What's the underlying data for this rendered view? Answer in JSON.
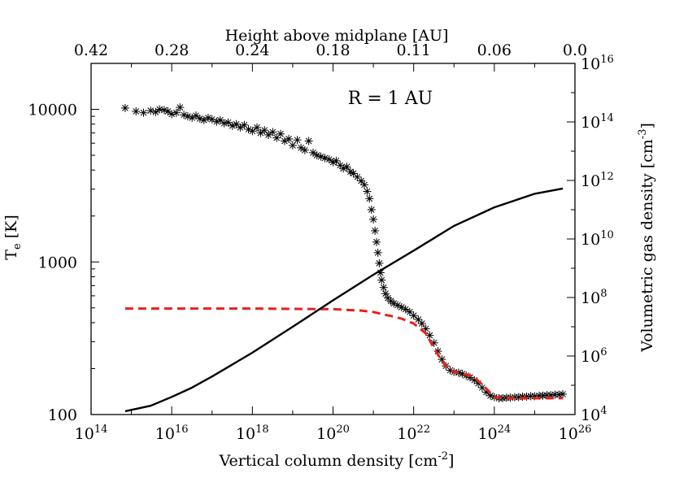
{
  "chart_data": {
    "type": "scatter",
    "annotation": "R = 1 AU",
    "xlabel": "Vertical column density [cm",
    "xlabel_sup": "-2",
    "xlabel_end": "]",
    "ylabel": "T",
    "ylabel_sub": "e",
    "ylabel_end": " [K]",
    "y2label": "Volumetric gas density [cm",
    "y2label_sup": "-3",
    "y2label_end": "]",
    "toplabel": "Height above midplane [AU]",
    "x_scale": "log",
    "y_scale": "log",
    "y2_scale": "log",
    "xlim": [
      100000000000000.0,
      1e+26
    ],
    "ylim": [
      100,
      20000
    ],
    "y2lim": [
      10000.0,
      1e+16
    ],
    "x_ticks": [
      {
        "base": "10",
        "exp": "14",
        "value": 100000000000000.0
      },
      {
        "base": "10",
        "exp": "16",
        "value": 1e+16
      },
      {
        "base": "10",
        "exp": "18",
        "value": 1e+18
      },
      {
        "base": "10",
        "exp": "20",
        "value": 1e+20
      },
      {
        "base": "10",
        "exp": "22",
        "value": 1e+22
      },
      {
        "base": "10",
        "exp": "24",
        "value": 1e+24
      },
      {
        "base": "10",
        "exp": "26",
        "value": 1e+26
      }
    ],
    "y_ticks": [
      {
        "label": "100",
        "value": 100
      },
      {
        "label": "1000",
        "value": 1000
      },
      {
        "label": "10000",
        "value": 10000
      }
    ],
    "y2_ticks": [
      {
        "base": "10",
        "exp": "4",
        "value": 10000.0
      },
      {
        "base": "10",
        "exp": "6",
        "value": 1000000.0
      },
      {
        "base": "10",
        "exp": "8",
        "value": 100000000.0
      },
      {
        "base": "10",
        "exp": "10",
        "value": 10000000000.0
      },
      {
        "base": "10",
        "exp": "12",
        "value": 1000000000000.0
      },
      {
        "base": "10",
        "exp": "14",
        "value": 100000000000000.0
      },
      {
        "base": "10",
        "exp": "16",
        "value": 1e+16
      }
    ],
    "top_ticks": [
      {
        "label": "0.42",
        "x": 100000000000000.0
      },
      {
        "label": "0.28",
        "x": 1e+16
      },
      {
        "label": "0.24",
        "x": 1e+18
      },
      {
        "label": "0.18",
        "x": 1e+20
      },
      {
        "label": "0.11",
        "x": 1e+22
      },
      {
        "label": "0.06",
        "x": 1e+24
      },
      {
        "label": "0.0",
        "x": 1e+26
      }
    ],
    "series": [
      {
        "style": "asterisk",
        "color": "#000000",
        "points": [
          [
            700000000000000.0,
            10200
          ],
          [
            1300000000000000.0,
            9700
          ],
          [
            2000000000000000.0,
            9500
          ],
          [
            3000000000000000.0,
            9800
          ],
          [
            4000000000000000.0,
            9600
          ],
          [
            5000000000000000.0,
            10000
          ],
          [
            6500000000000000.0,
            9900
          ],
          [
            8000000000000000.0,
            9700
          ],
          [
            1e+16,
            9300
          ],
          [
            1.3e+16,
            9500
          ],
          [
            1.6e+16,
            10300
          ],
          [
            2e+16,
            9200
          ],
          [
            2.5e+16,
            9000
          ],
          [
            3.2e+16,
            8800
          ],
          [
            4e+16,
            9100
          ],
          [
            5e+16,
            8700
          ],
          [
            6.3e+16,
            8500
          ],
          [
            8e+16,
            8800
          ],
          [
            1e+17,
            8600
          ],
          [
            1.3e+17,
            8300
          ],
          [
            1.6e+17,
            8500
          ],
          [
            2e+17,
            8100
          ],
          [
            2.5e+17,
            8200
          ],
          [
            3.2e+17,
            7800
          ],
          [
            4e+17,
            8000
          ],
          [
            5e+17,
            7600
          ],
          [
            6.3e+17,
            7900
          ],
          [
            8e+17,
            7400
          ],
          [
            1e+18,
            7200
          ],
          [
            1.3e+18,
            7600
          ],
          [
            1.6e+18,
            7000
          ],
          [
            2e+18,
            7300
          ],
          [
            2.5e+18,
            6800
          ],
          [
            3.2e+18,
            7100
          ],
          [
            4e+18,
            6500
          ],
          [
            5e+18,
            6900
          ],
          [
            6.3e+18,
            6200
          ],
          [
            8e+18,
            6400
          ],
          [
            1e+19,
            5800
          ],
          [
            1.3e+19,
            6300
          ],
          [
            1.6e+19,
            5600
          ],
          [
            2e+19,
            5400
          ],
          [
            2.5e+19,
            6200
          ],
          [
            3.2e+19,
            5200
          ],
          [
            4e+19,
            5000
          ],
          [
            5e+19,
            4900
          ],
          [
            6.3e+19,
            4800
          ],
          [
            8e+19,
            4700
          ],
          [
            1e+20,
            4500
          ],
          [
            1.2e+20,
            4600
          ],
          [
            1.5e+20,
            4300
          ],
          [
            1.8e+20,
            4100
          ],
          [
            2.2e+20,
            4200
          ],
          [
            2.7e+20,
            3900
          ],
          [
            3.2e+20,
            3800
          ],
          [
            4e+20,
            3600
          ],
          [
            5e+20,
            3400
          ],
          [
            6e+20,
            3200
          ],
          [
            7e+20,
            2900
          ],
          [
            8e+20,
            2600
          ],
          [
            9e+20,
            2200
          ],
          [
            1e+21,
            1900
          ],
          [
            1.1e+21,
            1600
          ],
          [
            1.2e+21,
            1350
          ],
          [
            1.3e+21,
            1150
          ],
          [
            1.4e+21,
            980
          ],
          [
            1.5e+21,
            850
          ],
          [
            1.6e+21,
            760
          ],
          [
            1.8e+21,
            680
          ],
          [
            2e+21,
            620
          ],
          [
            2.3e+21,
            580
          ],
          [
            2.7e+21,
            555
          ],
          [
            3.2e+21,
            535
          ],
          [
            4e+21,
            520
          ],
          [
            5e+21,
            505
          ],
          [
            6.3e+21,
            490
          ],
          [
            8e+21,
            470
          ],
          [
            1e+22,
            445
          ],
          [
            1.3e+22,
            420
          ],
          [
            1.6e+22,
            395
          ],
          [
            2e+22,
            365
          ],
          [
            2.5e+22,
            330
          ],
          [
            3.2e+22,
            295
          ],
          [
            4e+22,
            260
          ],
          [
            5e+22,
            230
          ],
          [
            6.3e+22,
            208
          ],
          [
            8e+22,
            195
          ],
          [
            1e+23,
            190
          ],
          [
            1.3e+23,
            188
          ],
          [
            1.6e+23,
            185
          ],
          [
            2e+23,
            180
          ],
          [
            2.5e+23,
            175
          ],
          [
            3.2e+23,
            168
          ],
          [
            4e+23,
            160
          ],
          [
            5e+23,
            150
          ],
          [
            6.3e+23,
            140
          ],
          [
            8e+23,
            133
          ],
          [
            1e+24,
            130
          ],
          [
            1.3e+24,
            128
          ],
          [
            1.6e+24,
            128
          ],
          [
            2e+24,
            129
          ],
          [
            2.5e+24,
            129
          ],
          [
            3.2e+24,
            130
          ],
          [
            4e+24,
            130
          ],
          [
            5e+24,
            131
          ],
          [
            6.3e+24,
            131
          ],
          [
            8e+24,
            132
          ],
          [
            1e+25,
            132
          ],
          [
            1.3e+25,
            133
          ],
          [
            1.6e+25,
            133
          ],
          [
            2e+25,
            134
          ],
          [
            2.5e+25,
            134
          ],
          [
            3.2e+25,
            135
          ],
          [
            4e+25,
            135
          ],
          [
            5e+25,
            136
          ]
        ]
      },
      {
        "style": "dashed",
        "color": "#e8201c",
        "axis": "left",
        "points": [
          [
            700000000000000.0,
            495
          ],
          [
            1e+16,
            495
          ],
          [
            1e+18,
            495
          ],
          [
            1e+20,
            490
          ],
          [
            5e+20,
            480
          ],
          [
            1e+21,
            470
          ],
          [
            2e+21,
            450
          ],
          [
            3e+21,
            440
          ],
          [
            5e+21,
            425
          ],
          [
            1e+22,
            395
          ],
          [
            2e+22,
            340
          ],
          [
            3e+22,
            280
          ],
          [
            5e+22,
            225
          ],
          [
            7e+22,
            200
          ],
          [
            1e+23,
            190
          ],
          [
            3e+23,
            178
          ],
          [
            6e+23,
            150
          ],
          [
            1e+24,
            130
          ],
          [
            2e+24,
            128
          ],
          [
            1e+25,
            128
          ],
          [
            5e+25,
            128
          ]
        ]
      },
      {
        "style": "solid",
        "color": "#000000",
        "axis": "right",
        "points": [
          [
            700000000000000.0,
            13000.0
          ],
          [
            3000000000000000.0,
            20000.0
          ],
          [
            1e+16,
            40000.0
          ],
          [
            3e+16,
            80000.0
          ],
          [
            1e+17,
            200000.0
          ],
          [
            1e+18,
            1300000.0
          ],
          [
            1e+19,
            10000000.0
          ],
          [
            1e+20,
            80000000.0
          ],
          [
            1e+21,
            600000000.0
          ],
          [
            1e+22,
            4000000000.0
          ],
          [
            1e+23,
            28000000000.0
          ],
          [
            1e+24,
            120000000000.0
          ],
          [
            1e+25,
            350000000000.0
          ],
          [
            5e+25,
            530000000000.0
          ]
        ]
      }
    ]
  }
}
